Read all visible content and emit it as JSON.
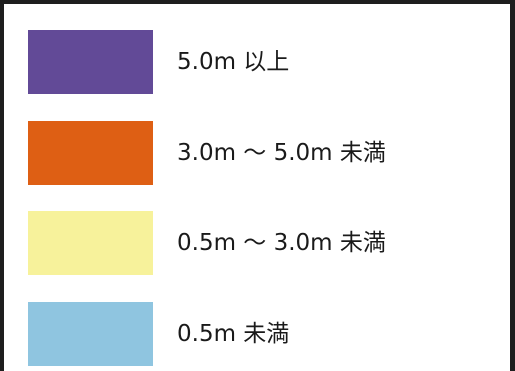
{
  "legend": {
    "items": [
      {
        "label": "5.0m 以上",
        "color": "#624a97"
      },
      {
        "label": "3.0m ～ 5.0m 未満",
        "color": "#de5f14"
      },
      {
        "label": "0.5m ～ 3.0m 未満",
        "color": "#f7f29b"
      },
      {
        "label": "0.5m 未満",
        "color": "#8fc5e0"
      }
    ]
  }
}
